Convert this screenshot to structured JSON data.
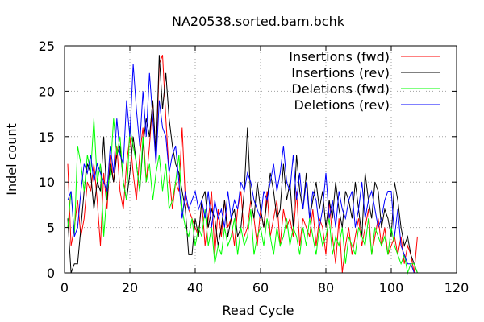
{
  "chart_data": {
    "type": "line",
    "title": "NA20538.sorted.bam.bchk",
    "xlabel": "Read Cycle",
    "ylabel": "Indel count",
    "xlim": [
      0,
      120
    ],
    "ylim": [
      0,
      25
    ],
    "xticks": [
      0,
      20,
      40,
      60,
      80,
      100,
      120
    ],
    "yticks": [
      0,
      5,
      10,
      15,
      20,
      25
    ],
    "grid": true,
    "legend_position": "top-right",
    "series": [
      {
        "name": "Insertions (fwd)",
        "color": "#ff0000",
        "x": [
          1,
          2,
          3,
          4,
          5,
          6,
          7,
          8,
          9,
          10,
          11,
          12,
          13,
          14,
          15,
          16,
          17,
          18,
          19,
          20,
          21,
          22,
          23,
          24,
          25,
          26,
          27,
          28,
          29,
          30,
          31,
          32,
          33,
          34,
          35,
          36,
          37,
          38,
          39,
          40,
          41,
          42,
          43,
          44,
          45,
          46,
          47,
          48,
          49,
          50,
          51,
          52,
          53,
          54,
          55,
          56,
          57,
          58,
          59,
          60,
          61,
          62,
          63,
          64,
          65,
          66,
          67,
          68,
          69,
          70,
          71,
          72,
          73,
          74,
          75,
          76,
          77,
          78,
          79,
          80,
          81,
          82,
          83,
          84,
          85,
          86,
          87,
          88,
          89,
          90,
          91,
          92,
          93,
          94,
          95,
          96,
          97,
          98,
          99,
          100,
          101,
          102,
          103,
          104,
          105,
          106,
          107,
          108
        ],
        "y": [
          12,
          3,
          5,
          8,
          4,
          6,
          10,
          9,
          12,
          8,
          3,
          11,
          7,
          13,
          10,
          14,
          9,
          7,
          12,
          15,
          11,
          8,
          13,
          16,
          10,
          14,
          19,
          12,
          23,
          24,
          17,
          11,
          7,
          10,
          9,
          16,
          8,
          7,
          6,
          5,
          4,
          8,
          3,
          6,
          9,
          2,
          7,
          4,
          8,
          5,
          6,
          3,
          7,
          9,
          4,
          5,
          8,
          6,
          3,
          7,
          5,
          9,
          4,
          6,
          8,
          3,
          7,
          5,
          6,
          4,
          9,
          3,
          6,
          5,
          4,
          7,
          3,
          6,
          5,
          2,
          8,
          4,
          1,
          6,
          0,
          3,
          5,
          2,
          4,
          6,
          3,
          5,
          7,
          2,
          4,
          6,
          3,
          5,
          2,
          3,
          4,
          2,
          4,
          1,
          3,
          2,
          0,
          4
        ]
      },
      {
        "name": "Insertions (rev)",
        "color": "#000000",
        "x": [
          1,
          2,
          3,
          4,
          5,
          6,
          7,
          8,
          9,
          10,
          11,
          12,
          13,
          14,
          15,
          16,
          17,
          18,
          19,
          20,
          21,
          22,
          23,
          24,
          25,
          26,
          27,
          28,
          29,
          30,
          31,
          32,
          33,
          34,
          35,
          36,
          37,
          38,
          39,
          40,
          41,
          42,
          43,
          44,
          45,
          46,
          47,
          48,
          49,
          50,
          51,
          52,
          53,
          54,
          55,
          56,
          57,
          58,
          59,
          60,
          61,
          62,
          63,
          64,
          65,
          66,
          67,
          68,
          69,
          70,
          71,
          72,
          73,
          74,
          75,
          76,
          77,
          78,
          79,
          80,
          81,
          82,
          83,
          84,
          85,
          86,
          87,
          88,
          89,
          90,
          91,
          92,
          93,
          94,
          95,
          96,
          97,
          98,
          99,
          100,
          101,
          102,
          103,
          104,
          105,
          106,
          107,
          108
        ],
        "y": [
          6,
          0,
          1,
          1,
          5,
          9,
          12,
          11,
          7,
          10,
          9,
          15,
          8,
          12,
          10,
          13,
          14,
          10,
          8,
          11,
          15,
          12,
          9,
          14,
          17,
          15,
          19,
          13,
          24,
          18,
          22,
          17,
          14,
          12,
          11,
          9,
          7,
          2,
          2,
          6,
          4,
          8,
          9,
          5,
          7,
          6,
          3,
          5,
          8,
          4,
          6,
          7,
          4,
          5,
          9,
          16,
          8,
          6,
          10,
          7,
          5,
          8,
          11,
          9,
          6,
          7,
          12,
          8,
          10,
          5,
          13,
          9,
          7,
          11,
          6,
          8,
          10,
          7,
          9,
          5,
          8,
          6,
          10,
          7,
          5,
          9,
          8,
          6,
          10,
          7,
          4,
          11,
          8,
          6,
          10,
          9,
          5,
          7,
          6,
          4,
          10,
          8,
          5,
          3,
          4,
          2,
          1,
          0
        ]
      },
      {
        "name": "Deletions (fwd)",
        "color": "#00ff00",
        "x": [
          1,
          2,
          3,
          4,
          5,
          6,
          7,
          8,
          9,
          10,
          11,
          12,
          13,
          14,
          15,
          16,
          17,
          18,
          19,
          20,
          21,
          22,
          23,
          24,
          25,
          26,
          27,
          28,
          29,
          30,
          31,
          32,
          33,
          34,
          35,
          36,
          37,
          38,
          39,
          40,
          41,
          42,
          43,
          44,
          45,
          46,
          47,
          48,
          49,
          50,
          51,
          52,
          53,
          54,
          55,
          56,
          57,
          58,
          59,
          60,
          61,
          62,
          63,
          64,
          65,
          66,
          67,
          68,
          69,
          70,
          71,
          72,
          73,
          74,
          75,
          76,
          77,
          78,
          79,
          80,
          81,
          82,
          83,
          84,
          85,
          86,
          87,
          88,
          89,
          90,
          91,
          92,
          93,
          94,
          95,
          96,
          97,
          98,
          99,
          100,
          101,
          102,
          103,
          104,
          105,
          106,
          107,
          108
        ],
        "y": [
          5,
          9,
          4,
          14,
          12,
          9,
          13,
          11,
          17,
          10,
          12,
          4,
          9,
          11,
          17,
          13,
          15,
          10,
          8,
          16,
          14,
          12,
          9,
          15,
          10,
          12,
          8,
          11,
          13,
          9,
          12,
          7,
          8,
          10,
          13,
          7,
          5,
          4,
          6,
          3,
          5,
          4,
          7,
          3,
          5,
          1,
          3,
          2,
          5,
          3,
          4,
          6,
          2,
          5,
          3,
          4,
          7,
          2,
          4,
          5,
          3,
          6,
          4,
          2,
          5,
          3,
          4,
          6,
          3,
          5,
          4,
          2,
          5,
          3,
          6,
          4,
          2,
          5,
          3,
          4,
          6,
          2,
          4,
          3,
          5,
          1,
          4,
          3,
          2,
          5,
          4,
          3,
          6,
          2,
          5,
          4,
          3,
          4,
          2,
          5,
          3,
          2,
          1,
          2,
          0,
          1,
          1,
          0
        ]
      },
      {
        "name": "Deletions (rev)",
        "color": "#0000ff",
        "x": [
          1,
          2,
          3,
          4,
          5,
          6,
          7,
          8,
          9,
          10,
          11,
          12,
          13,
          14,
          15,
          16,
          17,
          18,
          19,
          20,
          21,
          22,
          23,
          24,
          25,
          26,
          27,
          28,
          29,
          30,
          31,
          32,
          33,
          34,
          35,
          36,
          37,
          38,
          39,
          40,
          41,
          42,
          43,
          44,
          45,
          46,
          47,
          48,
          49,
          50,
          51,
          52,
          53,
          54,
          55,
          56,
          57,
          58,
          59,
          60,
          61,
          62,
          63,
          64,
          65,
          66,
          67,
          68,
          69,
          70,
          71,
          72,
          73,
          74,
          75,
          76,
          77,
          78,
          79,
          80,
          81,
          82,
          83,
          84,
          85,
          86,
          87,
          88,
          89,
          90,
          91,
          92,
          93,
          94,
          95,
          96,
          97,
          98,
          99,
          100,
          101,
          102,
          103,
          104,
          105,
          106,
          107,
          108
        ],
        "y": [
          8,
          9,
          4,
          5,
          9,
          12,
          11,
          13,
          10,
          12,
          11,
          10,
          9,
          14,
          11,
          17,
          13,
          12,
          19,
          15,
          23,
          18,
          14,
          20,
          15,
          22,
          17,
          12,
          19,
          16,
          15,
          11,
          13,
          14,
          10,
          6,
          9,
          7,
          8,
          9,
          7,
          8,
          6,
          9,
          5,
          8,
          6,
          7,
          5,
          9,
          6,
          8,
          7,
          10,
          9,
          11,
          10,
          8,
          7,
          6,
          9,
          8,
          10,
          12,
          9,
          11,
          14,
          10,
          9,
          13,
          8,
          11,
          7,
          10,
          6,
          9,
          8,
          5,
          7,
          11,
          6,
          8,
          5,
          9,
          7,
          6,
          8,
          9,
          5,
          7,
          10,
          6,
          8,
          9,
          7,
          5,
          6,
          8,
          9,
          9,
          4,
          7,
          3,
          2,
          1,
          1,
          0,
          0
        ]
      }
    ]
  }
}
